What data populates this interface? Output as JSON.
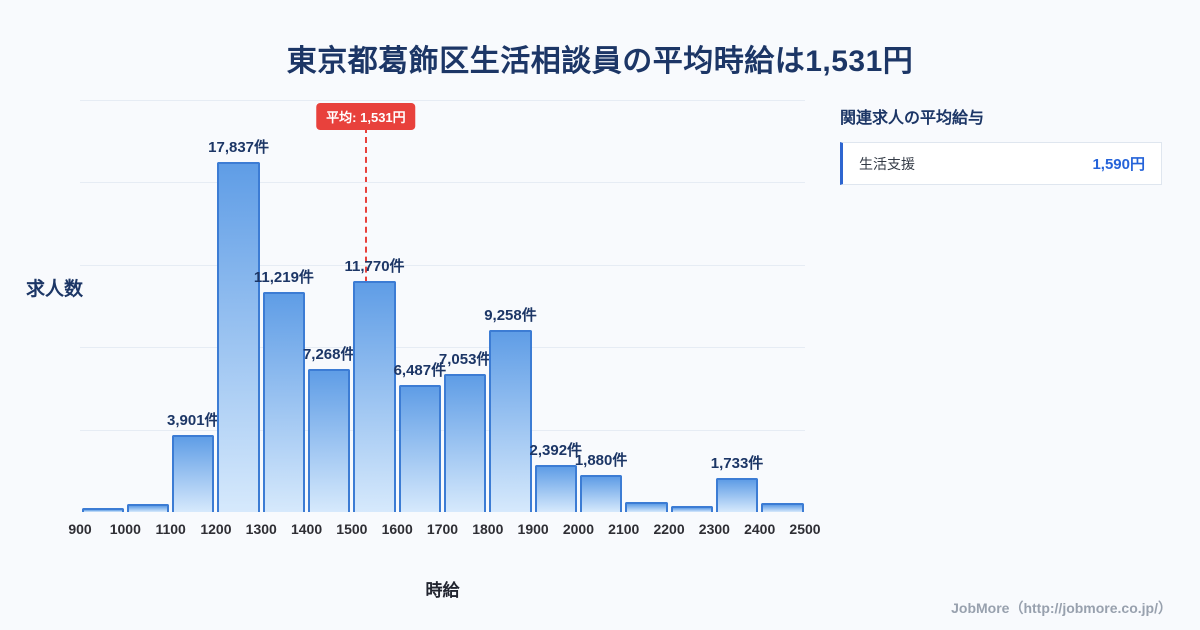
{
  "page": {
    "title": "東京都葛飾区生活相談員の平均時給は1,531円"
  },
  "chart_data": {
    "type": "bar",
    "title": "東京都葛飾区生活相談員の平均時給は1,531円",
    "xlabel": "時給",
    "ylabel": "求人数",
    "x_min": 900,
    "x_max": 2500,
    "ylim": [
      0,
      21000
    ],
    "grid": true,
    "x_ticks": [
      "900",
      "1000",
      "1100",
      "1200",
      "1300",
      "1400",
      "1500",
      "1600",
      "1700",
      "1800",
      "1900",
      "2000",
      "2100",
      "2200",
      "2300",
      "2400",
      "2500"
    ],
    "bins": [
      {
        "range": [
          900,
          1000
        ],
        "value": 200,
        "label": ""
      },
      {
        "range": [
          1000,
          1100
        ],
        "value": 410,
        "label": ""
      },
      {
        "range": [
          1100,
          1200
        ],
        "value": 3901,
        "label": "3,901件"
      },
      {
        "range": [
          1200,
          1300
        ],
        "value": 17837,
        "label": "17,837件"
      },
      {
        "range": [
          1300,
          1400
        ],
        "value": 11219,
        "label": "11,219件"
      },
      {
        "range": [
          1400,
          1500
        ],
        "value": 7268,
        "label": "7,268件"
      },
      {
        "range": [
          1500,
          1600
        ],
        "value": 11770,
        "label": "11,770件"
      },
      {
        "range": [
          1600,
          1700
        ],
        "value": 6487,
        "label": "6,487件"
      },
      {
        "range": [
          1700,
          1800
        ],
        "value": 7053,
        "label": "7,053件"
      },
      {
        "range": [
          1800,
          1900
        ],
        "value": 9258,
        "label": "9,258件"
      },
      {
        "range": [
          1900,
          2000
        ],
        "value": 2392,
        "label": "2,392件"
      },
      {
        "range": [
          2000,
          2100
        ],
        "value": 1880,
        "label": "1,880件"
      },
      {
        "range": [
          2100,
          2200
        ],
        "value": 510,
        "label": ""
      },
      {
        "range": [
          2200,
          2300
        ],
        "value": 300,
        "label": ""
      },
      {
        "range": [
          2300,
          2400
        ],
        "value": 1733,
        "label": "1,733件"
      },
      {
        "range": [
          2400,
          2500
        ],
        "value": 460,
        "label": ""
      }
    ],
    "average_line": {
      "x": 1531,
      "label": "平均: 1,531円",
      "color": "#e8413c"
    },
    "colors": {
      "bar_top": "#5f9de6",
      "bar_bottom": "#d6e9fc",
      "bar_border": "#3c7cd4",
      "grid": "#e6ecf4"
    }
  },
  "side_panel": {
    "heading": "関連求人の平均給与",
    "items": [
      {
        "name": "生活支援",
        "salary": "1,590円"
      }
    ]
  },
  "footer": {
    "credit": "JobMore（http://jobmore.co.jp/）"
  }
}
